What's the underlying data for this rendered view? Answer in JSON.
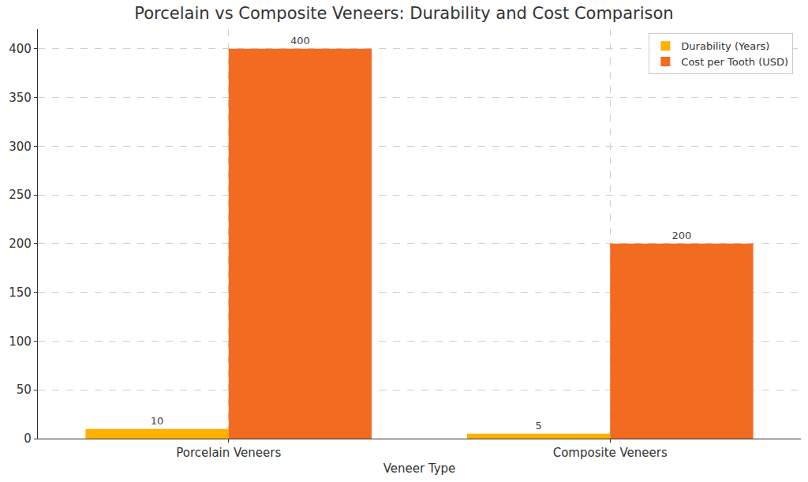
{
  "chart_data": {
    "type": "bar",
    "title": "Porcelain vs Composite Veneers: Durability and Cost Comparison",
    "x_label": "Veneer Type",
    "categories": [
      "Porcelain Veneers",
      "Composite Veneers"
    ],
    "series": [
      {
        "name": "Durability (Years)",
        "color": "#ffb000",
        "values": [
          10,
          5
        ]
      },
      {
        "name": "Cost per Tooth (USD)",
        "color": "#f26b21",
        "values": [
          400,
          200
        ]
      }
    ],
    "ylim": [
      0,
      420
    ],
    "yticks": [
      0,
      50,
      100,
      150,
      200,
      250,
      300,
      350,
      400
    ],
    "grid": true,
    "legend": "upper right",
    "data_labels": true
  }
}
